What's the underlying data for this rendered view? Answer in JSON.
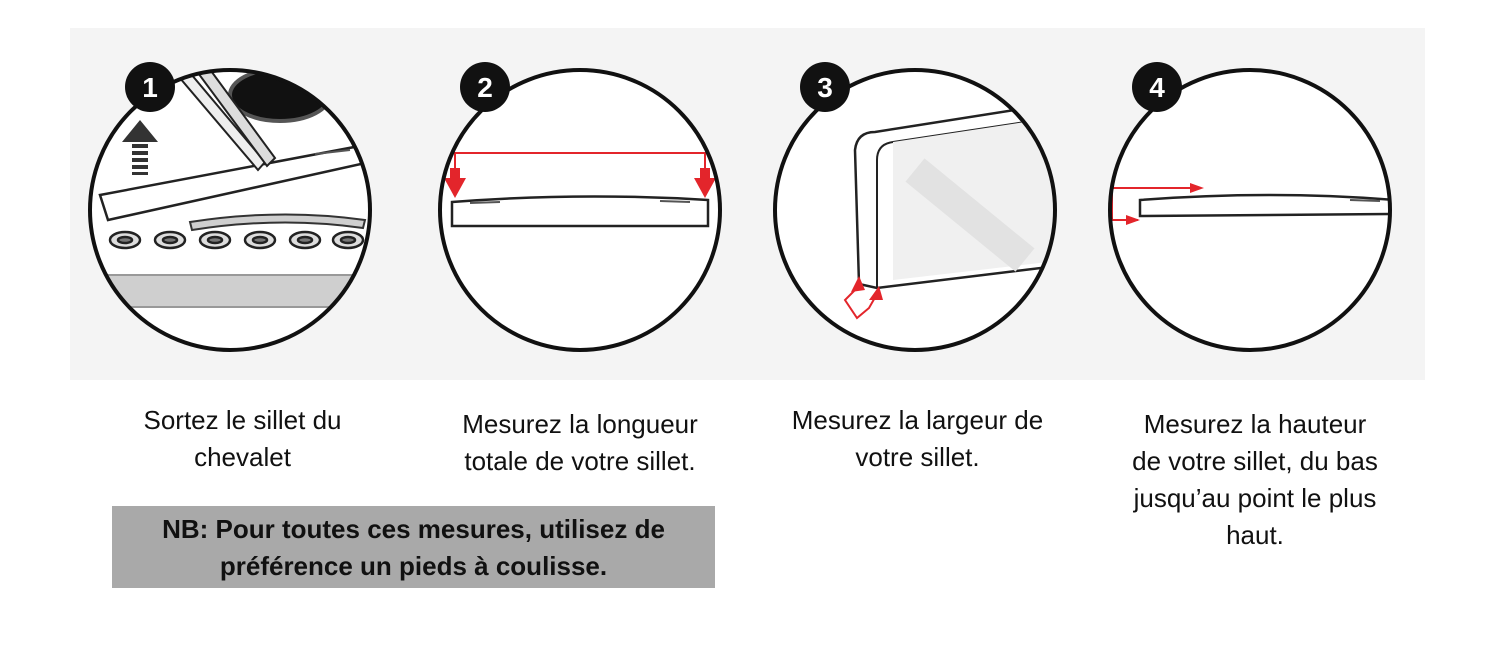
{
  "steps": [
    {
      "number": "1",
      "caption_line1": "Sortez le sillet du",
      "caption_line2": "chevalet"
    },
    {
      "number": "2",
      "caption_line1": "Mesurez la longueur",
      "caption_line2": "totale de votre sillet."
    },
    {
      "number": "3",
      "caption_line1": "Mesurez la largeur de",
      "caption_line2": "votre sillet."
    },
    {
      "number": "4",
      "caption_line1": "Mesurez la hauteur",
      "caption_line2": "de votre sillet, du bas",
      "caption_line3": "jusqu’au point le plus",
      "caption_line4": "haut."
    }
  ],
  "note": {
    "line1": "NB: Pour toutes ces mesures, utilisez de",
    "line2": "préférence un pieds à coulisse."
  },
  "colors": {
    "arrow": "#e3252b",
    "outline": "#111111",
    "band": "#f4f4f4",
    "note_bg": "#a9a9a9"
  }
}
